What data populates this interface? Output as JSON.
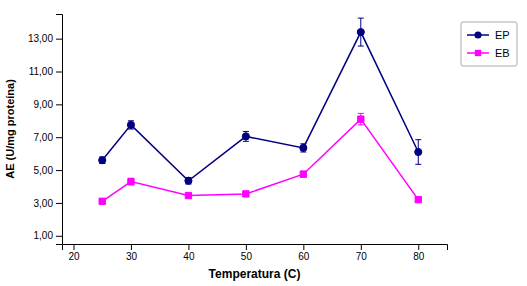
{
  "chart_data": {
    "type": "line",
    "x": [
      25,
      30,
      40,
      50,
      60,
      70,
      80
    ],
    "xlabel": "Temperatura (C)",
    "ylabel": "AE (U/mg proteína)",
    "xlim": [
      18,
      85
    ],
    "ylim": [
      0.5,
      14.5
    ],
    "xticks": [
      20,
      30,
      40,
      50,
      60,
      70,
      80
    ],
    "yticks": [
      {
        "value": 1.0,
        "label": "1,00"
      },
      {
        "value": 3.0,
        "label": "3,00"
      },
      {
        "value": 5.0,
        "label": "5,00"
      },
      {
        "value": 7.0,
        "label": "7,00"
      },
      {
        "value": 9.0,
        "label": "9,00"
      },
      {
        "value": 11.0,
        "label": "11,00"
      },
      {
        "value": 13.0,
        "label": "13,00"
      }
    ],
    "grid": false,
    "legend": "right",
    "series": [
      {
        "name": "EP",
        "color": "#000080",
        "marker": "circle",
        "values": [
          5.6,
          7.75,
          4.35,
          7.05,
          6.35,
          13.4,
          6.1
        ],
        "errors": [
          0.2,
          0.25,
          0.2,
          0.3,
          0.25,
          0.85,
          0.75
        ]
      },
      {
        "name": "EB",
        "color": "#FF00FF",
        "marker": "square",
        "values": [
          3.1,
          4.3,
          3.45,
          3.55,
          4.75,
          8.1,
          3.2
        ],
        "errors": [
          0.1,
          0.2,
          0.12,
          0.1,
          0.18,
          0.35,
          0.12
        ]
      }
    ]
  }
}
